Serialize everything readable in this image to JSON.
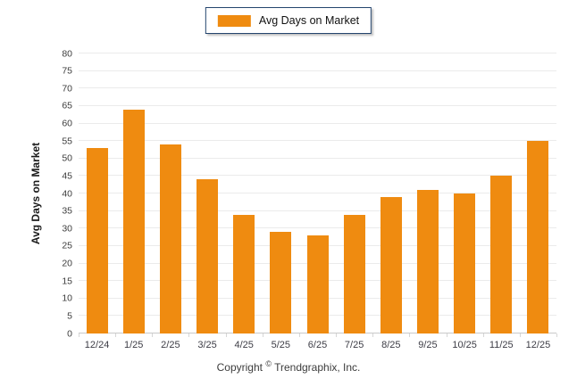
{
  "legend": {
    "label": "Avg Days on Market",
    "swatch_color": "#EF8B10"
  },
  "y_axis_title": "Avg Days on Market",
  "footer": {
    "prefix": "Copyright",
    "symbol": "©",
    "suffix": " Trendgraphix, Inc."
  },
  "colors": {
    "bar": "#EF8B10",
    "gridline": "#EBEBEB",
    "baseline": "#C9C9C9",
    "legend_border": "#24456E",
    "tick_text": "#3d3d3d"
  },
  "chart_data": {
    "type": "bar",
    "title": "",
    "series_name": "Avg Days on Market",
    "categories": [
      "12/24",
      "1/25",
      "2/25",
      "3/25",
      "4/25",
      "5/25",
      "6/25",
      "7/25",
      "8/25",
      "9/25",
      "10/25",
      "11/25",
      "12/25"
    ],
    "values": [
      53,
      64,
      54,
      44,
      34,
      29,
      28,
      34,
      39,
      41,
      40,
      45,
      55
    ],
    "xlabel": "",
    "ylabel": "Avg Days on Market",
    "ylim": [
      0,
      80
    ],
    "ytick_step": 5,
    "grid": "horizontal",
    "legend_position": "top-center",
    "bar_color": "#EF8B10"
  }
}
